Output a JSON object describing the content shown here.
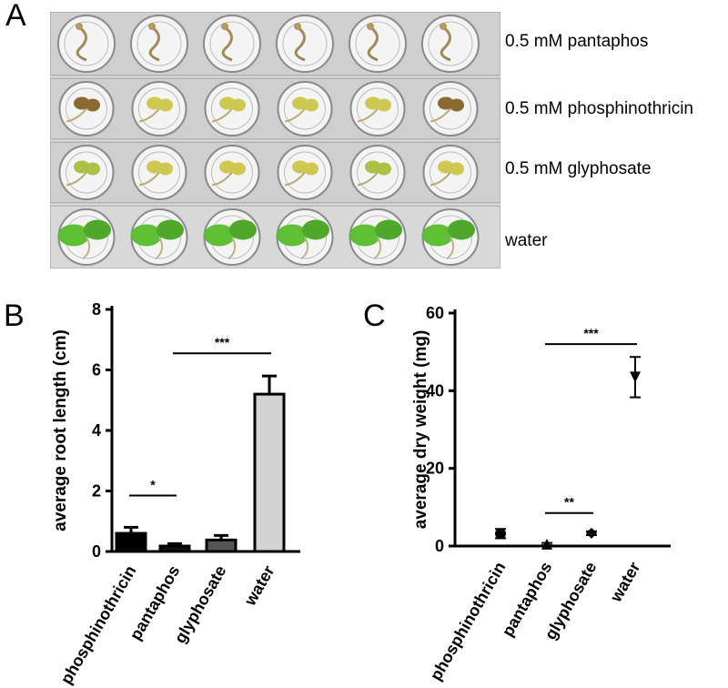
{
  "panels": {
    "a": "A",
    "b": "B",
    "c": "C"
  },
  "photo": {
    "rows": [
      {
        "label": "0.5 mM pantaphos",
        "wells": [
          "dead",
          "dead",
          "dead",
          "dead",
          "dead",
          "dead"
        ]
      },
      {
        "label": "0.5 mM phosphinothricin",
        "wells": [
          "brown",
          "yellow",
          "yellow",
          "yellow",
          "yellow",
          "brown"
        ]
      },
      {
        "label": "0.5 mM glyphosate",
        "wells": [
          "yellowgreen",
          "yellow",
          "yellow",
          "yellow",
          "yellowgreen",
          "yellow"
        ]
      },
      {
        "label": "water",
        "wells": [
          "green",
          "green",
          "green",
          "green",
          "green",
          "green"
        ]
      }
    ]
  },
  "chart_data": [
    {
      "type": "bar",
      "panel": "B",
      "title": "",
      "xlabel": "",
      "ylabel": "average root length (cm)",
      "ylim": [
        0,
        8
      ],
      "yticks": [
        "0",
        "2",
        "4",
        "6",
        "8"
      ],
      "categories": [
        "phosphinothricin",
        "pantaphos",
        "glyphosate",
        "water"
      ],
      "values": [
        0.6,
        0.18,
        0.38,
        5.2
      ],
      "errors": [
        0.2,
        0.08,
        0.15,
        0.6
      ],
      "colors": [
        "#000000",
        "#111111",
        "#555555",
        "#d3d3d3"
      ],
      "significance": [
        {
          "from": 0,
          "to": 1,
          "label": "*",
          "y": 1.85
        },
        {
          "from": 1,
          "to": 3,
          "label": "***",
          "y": 6.55
        }
      ]
    },
    {
      "type": "scatter",
      "panel": "C",
      "title": "",
      "xlabel": "",
      "ylabel": "average dry weight (mg)",
      "ylim": [
        0,
        60
      ],
      "yticks": [
        "0",
        "20",
        "40",
        "60"
      ],
      "categories": [
        "phosphinothricin",
        "pantaphos",
        "glyphosate",
        "water"
      ],
      "values": [
        3.2,
        0.5,
        3.3,
        43.5
      ],
      "errors": [
        1.2,
        0.3,
        0.5,
        5.2
      ],
      "markers": [
        "circle",
        "triangle-up",
        "diamond",
        "triangle-down"
      ],
      "significance": [
        {
          "from": 1,
          "to": 3,
          "label": "***",
          "y": 52
        },
        {
          "from": 1,
          "to": 2,
          "label": "**",
          "y": 8.5
        }
      ]
    }
  ]
}
